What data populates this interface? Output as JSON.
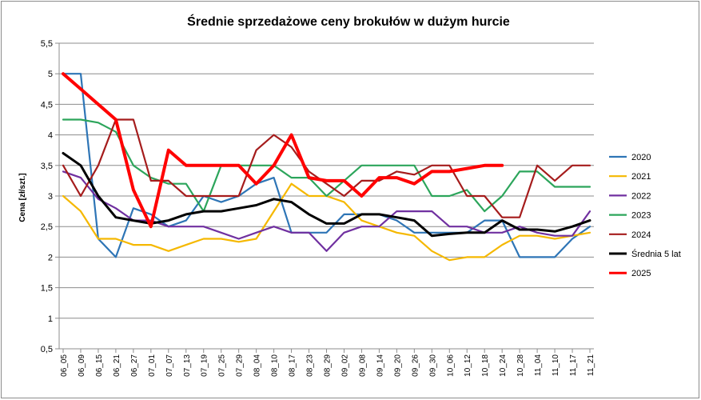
{
  "chart_data": {
    "type": "line",
    "title": "Średnie sprzedażowe ceny brokułów w dużym hurcie",
    "ylabel": "Cena [zł/szt.]",
    "xlabel": "",
    "ylim": [
      0.5,
      5.5
    ],
    "yticks": [
      "0,5",
      "1",
      "1,5",
      "2",
      "2,5",
      "3",
      "3,5",
      "4",
      "4,5",
      "5",
      "5,5"
    ],
    "grid": "horizontal",
    "legend": "right",
    "x": [
      "06_05",
      "06_09",
      "06_15",
      "06_21",
      "06_27",
      "07_01",
      "07_07",
      "07_13",
      "07_19",
      "07_25",
      "07_29",
      "08_04",
      "08_10",
      "08_17",
      "08_23",
      "08_29",
      "09_02",
      "09_08",
      "09_14",
      "09_20",
      "09_26",
      "09_30",
      "10_06",
      "10_12",
      "10_18",
      "10_24",
      "10_28",
      "11_04",
      "11_10",
      "11_17",
      "11_21"
    ],
    "series": [
      {
        "name": "2020",
        "color": "#2e75b6",
        "width": 2.2,
        "values": [
          5.0,
          5.0,
          2.3,
          2.0,
          2.8,
          2.7,
          2.5,
          2.6,
          3.0,
          2.9,
          3.0,
          3.2,
          3.3,
          2.4,
          2.4,
          2.4,
          2.7,
          2.7,
          2.7,
          2.6,
          2.4,
          2.4,
          2.4,
          2.4,
          2.6,
          2.6,
          2.0,
          2.0,
          2.0,
          2.3,
          2.5
        ]
      },
      {
        "name": "2021",
        "color": "#f5b800",
        "width": 2.2,
        "values": [
          3.0,
          2.75,
          2.3,
          2.3,
          2.2,
          2.2,
          2.1,
          2.2,
          2.3,
          2.3,
          2.25,
          2.3,
          2.75,
          3.2,
          3.0,
          3.0,
          2.9,
          2.6,
          2.5,
          2.4,
          2.35,
          2.1,
          1.95,
          2.0,
          2.0,
          2.2,
          2.35,
          2.35,
          2.3,
          2.35,
          2.4
        ]
      },
      {
        "name": "2022",
        "color": "#7030a0",
        "width": 2.2,
        "values": [
          3.4,
          3.3,
          2.95,
          2.8,
          2.6,
          2.6,
          2.5,
          2.5,
          2.5,
          2.4,
          2.3,
          2.4,
          2.5,
          2.4,
          2.4,
          2.1,
          2.4,
          2.5,
          2.5,
          2.75,
          2.75,
          2.75,
          2.5,
          2.5,
          2.4,
          2.4,
          2.5,
          2.4,
          2.35,
          2.35,
          2.75
        ]
      },
      {
        "name": "2023",
        "color": "#2ca55b",
        "width": 2.2,
        "values": [
          4.25,
          4.25,
          4.2,
          4.05,
          3.5,
          3.3,
          3.2,
          3.2,
          2.75,
          3.5,
          3.5,
          3.5,
          3.5,
          3.3,
          3.3,
          3.0,
          3.25,
          3.5,
          3.5,
          3.5,
          3.5,
          3.0,
          3.0,
          3.1,
          2.75,
          3.0,
          3.4,
          3.4,
          3.15,
          3.15,
          3.15
        ]
      },
      {
        "name": "2024",
        "color": "#a51c1c",
        "width": 2.2,
        "values": [
          3.5,
          3.0,
          3.5,
          4.25,
          4.25,
          3.25,
          3.25,
          3.0,
          3.0,
          3.0,
          3.0,
          3.75,
          4.0,
          3.8,
          3.4,
          3.2,
          3.0,
          3.25,
          3.25,
          3.4,
          3.35,
          3.5,
          3.5,
          3.0,
          3.0,
          2.65,
          2.65,
          3.5,
          3.25,
          3.5,
          3.5
        ]
      },
      {
        "name": "Średnia 5 lat",
        "color": "#000000",
        "width": 3,
        "values": [
          3.7,
          3.5,
          3.0,
          2.65,
          2.6,
          2.55,
          2.6,
          2.7,
          2.75,
          2.75,
          2.8,
          2.85,
          2.95,
          2.9,
          2.7,
          2.55,
          2.55,
          2.7,
          2.7,
          2.65,
          2.6,
          2.35,
          2.38,
          2.4,
          2.4,
          2.6,
          2.45,
          2.45,
          2.42,
          2.5,
          2.6
        ]
      },
      {
        "name": "2025",
        "color": "#ff0000",
        "width": 4,
        "values": [
          5.0,
          4.75,
          4.5,
          4.25,
          3.1,
          2.5,
          3.75,
          3.5,
          3.5,
          3.5,
          3.5,
          3.2,
          3.5,
          4.0,
          3.3,
          3.25,
          3.25,
          3.0,
          3.3,
          3.3,
          3.2,
          3.4,
          3.4,
          3.45,
          3.5,
          3.5,
          null,
          null,
          null,
          null,
          null
        ]
      }
    ]
  }
}
